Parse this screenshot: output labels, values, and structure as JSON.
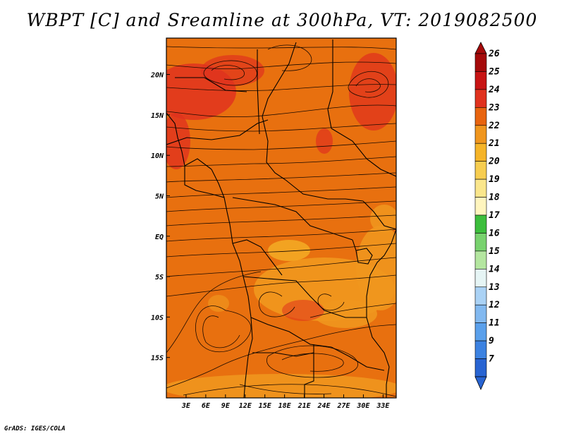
{
  "title": "WBPT [C] and Sreamline at 300hPa, VT: 2019082500",
  "credit": "GrADS: IGES/COLA",
  "map": {
    "lon_range": [
      0,
      35
    ],
    "lat_range": [
      -20,
      24.5
    ],
    "lat_ticks": [
      {
        "value": 20,
        "label": "20N"
      },
      {
        "value": 15,
        "label": "15N"
      },
      {
        "value": 10,
        "label": "10N"
      },
      {
        "value": 5,
        "label": "5N"
      },
      {
        "value": 0,
        "label": "EQ"
      },
      {
        "value": -5,
        "label": "5S"
      },
      {
        "value": -10,
        "label": "10S"
      },
      {
        "value": -15,
        "label": "15S"
      }
    ],
    "lon_ticks": [
      {
        "value": 3,
        "label": "3E"
      },
      {
        "value": 6,
        "label": "6E"
      },
      {
        "value": 9,
        "label": "9E"
      },
      {
        "value": 12,
        "label": "12E"
      },
      {
        "value": 15,
        "label": "15E"
      },
      {
        "value": 18,
        "label": "18E"
      },
      {
        "value": 21,
        "label": "21E"
      },
      {
        "value": 24,
        "label": "24E"
      },
      {
        "value": 27,
        "label": "27E"
      },
      {
        "value": 30,
        "label": "30E"
      },
      {
        "value": 33,
        "label": "33E"
      }
    ],
    "base_color": "#e8700f"
  },
  "colorbar": {
    "levels": [
      {
        "label": "26",
        "color": "#a50a0a"
      },
      {
        "label": "25",
        "color": "#c81414"
      },
      {
        "label": "24",
        "color": "#e0321e"
      },
      {
        "label": "23",
        "color": "#e8640f"
      },
      {
        "label": "22",
        "color": "#f0961e"
      },
      {
        "label": "21",
        "color": "#f5b428"
      },
      {
        "label": "20",
        "color": "#f7cd50"
      },
      {
        "label": "19",
        "color": "#fae68c"
      },
      {
        "label": "18",
        "color": "#fff5be"
      },
      {
        "label": "17",
        "color": "#3cbe3c"
      },
      {
        "label": "16",
        "color": "#78d26e"
      },
      {
        "label": "15",
        "color": "#b4e6a0"
      },
      {
        "label": "14",
        "color": "#e6f5f5"
      },
      {
        "label": "13",
        "color": "#aad2f5"
      },
      {
        "label": "12",
        "color": "#82b9f0"
      },
      {
        "label": "11",
        "color": "#5aa0eb"
      },
      {
        "label": "9",
        "color": "#3c82e1"
      },
      {
        "label": "7",
        "color": "#2864d2"
      }
    ],
    "top_color": "#a50a0a",
    "bottom_color": "#2864d2"
  }
}
